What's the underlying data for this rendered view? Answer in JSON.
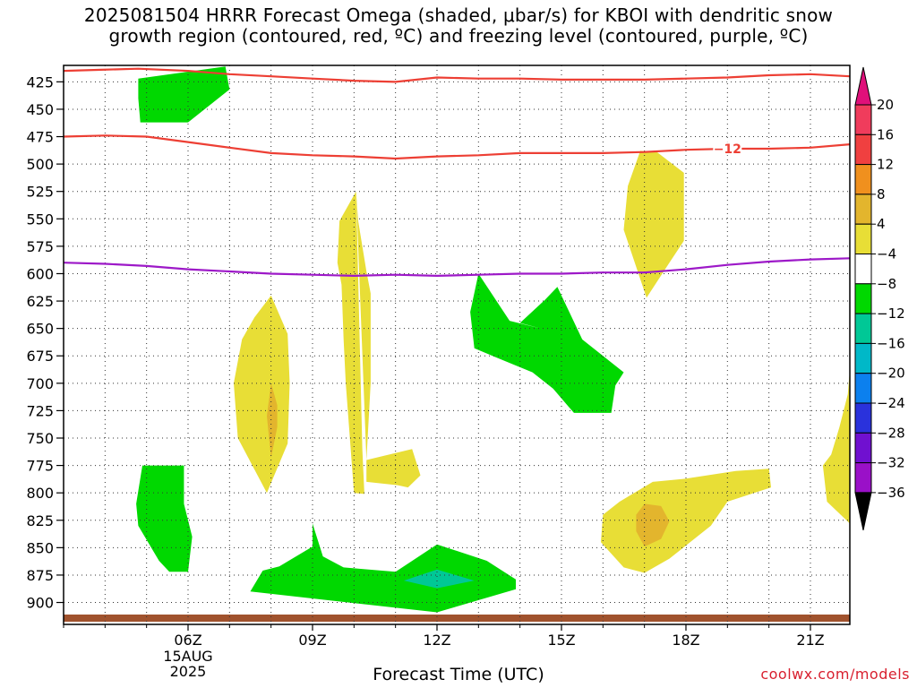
{
  "title": {
    "line1": "2025081504 HRRR Forecast Omega (shaded, μbar/s) for KBOI with dendritic snow",
    "line2": "growth region (contoured, red, ºC) and freezing level (contoured, purple, ºC)"
  },
  "xlabel": "Forecast Time (UTC)",
  "credit": "coolwx.com/models",
  "date_label": [
    "15AUG",
    "2025"
  ],
  "contour_label": "−12",
  "colorbar": {
    "levels": [
      20,
      16,
      12,
      8,
      4,
      -4,
      -8,
      -12,
      -16,
      -20,
      -24,
      -28,
      -32,
      -36
    ],
    "colors": [
      "#f03c5c",
      "#f04040",
      "#f0901e",
      "#e3b52d",
      "#e8de36",
      "#ffffff",
      "#00d800",
      "#00c896",
      "#00b8c8",
      "#0c80ee",
      "#2a32dc",
      "#7010d0",
      "#9a10c8",
      "#a0a0a0"
    ],
    "top_color": "#e0107a",
    "bottom_color": "#000000"
  },
  "chart_data": {
    "type": "heatmap",
    "title": "2025081504 HRRR Forecast Omega (shaded, μbar/s) for KBOI with dendritic snow growth region (contoured, red, ºC) and freezing level (contoured, purple, ºC)",
    "xlabel": "Forecast Time (UTC)",
    "ylabel": "",
    "x_ticks": [
      "06Z",
      "09Z",
      "12Z",
      "15Z",
      "18Z",
      "21Z"
    ],
    "x_tick_hours": [
      6,
      9,
      12,
      15,
      18,
      21
    ],
    "xlim_hours": [
      3.0,
      21.95
    ],
    "y_ticks": [
      425,
      450,
      475,
      500,
      525,
      550,
      575,
      600,
      625,
      650,
      675,
      700,
      725,
      750,
      775,
      800,
      825,
      850,
      875,
      900
    ],
    "ylim": [
      410,
      920
    ],
    "y_reversed": true,
    "colorbar_levels": [
      20,
      16,
      12,
      8,
      4,
      -4,
      -8,
      -12,
      -16,
      -20,
      -24,
      -28,
      -32,
      -36
    ],
    "regions": [
      {
        "name": "green",
        "level": "-4",
        "points": [
          [
            4.8,
            422
          ],
          [
            6.9,
            411
          ],
          [
            7.0,
            432
          ],
          [
            6.0,
            462
          ],
          [
            4.85,
            462
          ],
          [
            4.8,
            440
          ]
        ]
      },
      {
        "name": "yellow",
        "level": "4",
        "points": [
          [
            16.9,
            488
          ],
          [
            17.3,
            489
          ],
          [
            17.95,
            508
          ],
          [
            17.95,
            570
          ],
          [
            17.6,
            590
          ],
          [
            17.05,
            622
          ],
          [
            16.5,
            560
          ],
          [
            16.6,
            520
          ]
        ]
      },
      {
        "name": "yellow",
        "level": "4",
        "points": [
          [
            10.05,
            525
          ],
          [
            10.1,
            552
          ],
          [
            10.3,
            598
          ],
          [
            10.4,
            618
          ],
          [
            10.4,
            700
          ],
          [
            10.3,
            770
          ],
          [
            10.3,
            790
          ],
          [
            11.05,
            793
          ],
          [
            11.3,
            795
          ],
          [
            11.6,
            784
          ],
          [
            11.4,
            760
          ],
          [
            10.3,
            770
          ]
        ]
      },
      {
        "name": "yellow",
        "level": "4",
        "points": [
          [
            10.05,
            525
          ],
          [
            9.65,
            552
          ],
          [
            9.6,
            590
          ],
          [
            9.7,
            610
          ],
          [
            9.75,
            660
          ],
          [
            9.8,
            700
          ],
          [
            10.0,
            800
          ],
          [
            10.25,
            801
          ],
          [
            10.2,
            760
          ],
          [
            10.05,
            525
          ]
        ]
      },
      {
        "name": "yellow",
        "level": "4",
        "points": [
          [
            8.0,
            620
          ],
          [
            8.4,
            655
          ],
          [
            8.45,
            700
          ],
          [
            8.4,
            755
          ],
          [
            7.9,
            800
          ],
          [
            7.2,
            750
          ],
          [
            7.1,
            700
          ],
          [
            7.3,
            660
          ],
          [
            7.6,
            640
          ]
        ]
      },
      {
        "name": "orange",
        "level": "8",
        "points": [
          [
            8.0,
            700
          ],
          [
            8.15,
            720
          ],
          [
            8.15,
            740
          ],
          [
            8.0,
            768
          ],
          [
            7.9,
            730
          ]
        ]
      },
      {
        "name": "green",
        "level": "-4",
        "points": [
          [
            13.0,
            600
          ],
          [
            13.75,
            643
          ],
          [
            14.5,
            650
          ],
          [
            14.0,
            645
          ],
          [
            14.6,
            624
          ],
          [
            14.9,
            612
          ],
          [
            15.5,
            660
          ],
          [
            16.5,
            690
          ],
          [
            16.3,
            702
          ],
          [
            16.2,
            727
          ],
          [
            15.3,
            727
          ],
          [
            14.8,
            705
          ],
          [
            14.3,
            690
          ],
          [
            13.4,
            676
          ],
          [
            12.9,
            668
          ],
          [
            12.8,
            635
          ]
        ]
      },
      {
        "name": "green",
        "level": "-4",
        "points": [
          [
            4.9,
            775
          ],
          [
            5.9,
            775
          ],
          [
            5.9,
            810
          ],
          [
            6.1,
            840
          ],
          [
            6.0,
            872
          ],
          [
            5.55,
            872
          ],
          [
            5.3,
            862
          ],
          [
            4.8,
            830
          ],
          [
            4.75,
            810
          ]
        ]
      },
      {
        "name": "green",
        "level": "-4",
        "points": [
          [
            9.0,
            828
          ],
          [
            9.25,
            858
          ],
          [
            9.75,
            868
          ],
          [
            11.0,
            872
          ],
          [
            12.0,
            847
          ],
          [
            13.2,
            862
          ],
          [
            13.9,
            879
          ],
          [
            13.9,
            888
          ],
          [
            12.0,
            909
          ],
          [
            7.5,
            890
          ],
          [
            7.8,
            871
          ],
          [
            8.2,
            867
          ],
          [
            9.0,
            849
          ]
        ]
      },
      {
        "name": "teal",
        "level": "-8",
        "points": [
          [
            11.2,
            880
          ],
          [
            12.0,
            870
          ],
          [
            12.9,
            880
          ],
          [
            12.0,
            887
          ]
        ]
      },
      {
        "name": "yellow",
        "level": "4",
        "points": [
          [
            16.4,
            808
          ],
          [
            17.2,
            790
          ],
          [
            18.0,
            787
          ],
          [
            19.2,
            780
          ],
          [
            20.0,
            778
          ],
          [
            20.05,
            795
          ],
          [
            19.0,
            808
          ],
          [
            18.6,
            830
          ],
          [
            17.6,
            860
          ],
          [
            17.0,
            873
          ],
          [
            16.5,
            868
          ],
          [
            15.95,
            845
          ],
          [
            16.0,
            820
          ]
        ]
      },
      {
        "name": "orange",
        "level": "8",
        "points": [
          [
            17.0,
            810
          ],
          [
            17.4,
            812
          ],
          [
            17.6,
            826
          ],
          [
            17.4,
            842
          ],
          [
            17.0,
            849
          ],
          [
            16.8,
            835
          ],
          [
            16.8,
            820
          ]
        ]
      },
      {
        "name": "yellow",
        "level": "4",
        "points": [
          [
            21.95,
            688
          ],
          [
            21.9,
            710
          ],
          [
            21.7,
            740
          ],
          [
            21.5,
            765
          ],
          [
            21.3,
            775
          ],
          [
            21.4,
            808
          ],
          [
            21.95,
            828
          ]
        ]
      }
    ],
    "series": [
      {
        "name": "",
        "color": "#ed3f34",
        "x": [
          3.0,
          3.9,
          4.8,
          6.0,
          7.0,
          8.0,
          9.0,
          10.0,
          11.0,
          12.0,
          13.0,
          14.0,
          15.0,
          16.0,
          17.0,
          18.0,
          19.0,
          20.0,
          21.0,
          21.95
        ],
        "y": [
          415,
          414,
          413,
          415,
          418,
          420,
          422,
          424,
          425,
          421,
          422,
          422,
          423,
          423,
          423,
          422,
          421,
          419,
          418,
          420
        ]
      },
      {
        "name": "",
        "color": "#ed3f34",
        "x": [
          3.0,
          4.0,
          5.0,
          6.0,
          7.0,
          8.0,
          9.0,
          10.0,
          11.0,
          12.0,
          13.0,
          14.0,
          15.0,
          16.0,
          17.0,
          18.0,
          19.0,
          20.0,
          21.0,
          21.95
        ],
        "y": [
          475,
          474,
          475,
          480,
          485,
          490,
          492,
          493,
          495,
          493,
          492,
          490,
          490,
          490,
          489,
          487,
          486,
          486,
          485,
          482
        ]
      },
      {
        "name": "",
        "color": "#9d19c8",
        "x": [
          3.0,
          4.0,
          5.0,
          6.0,
          7.0,
          8.0,
          9.0,
          10.0,
          11.0,
          12.0,
          13.0,
          14.0,
          15.0,
          16.0,
          17.0,
          18.0,
          19.0,
          20.0,
          21.0,
          21.95
        ],
        "y": [
          590,
          591,
          593,
          596,
          598,
          600,
          601,
          602,
          601,
          602,
          601,
          600,
          600,
          599,
          599,
          596,
          592,
          589,
          587,
          586
        ]
      }
    ],
    "label_on_contour": {
      "text": "−12",
      "x": 19.0,
      "y": 487
    }
  }
}
